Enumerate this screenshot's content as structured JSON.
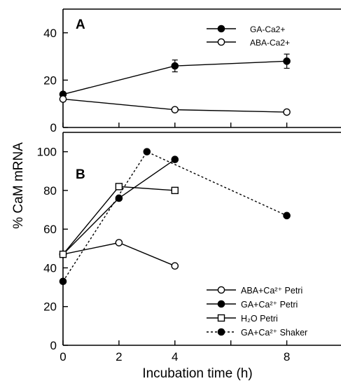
{
  "chart_data": [
    {
      "panel": "A",
      "type": "line",
      "xlabel": "",
      "ylabel": "% CaM mRNA",
      "xlim": [
        0,
        8.5
      ],
      "ylim": [
        0,
        50
      ],
      "x_ticks": [
        0,
        2,
        4,
        6,
        8
      ],
      "y_ticks": [
        0,
        20,
        40
      ],
      "y_tick_labels": [
        "0",
        "20",
        "40"
      ],
      "legend_position": "top-right",
      "series": [
        {
          "name": "GA-Ca2+",
          "marker": "filled-circle",
          "style": "solid",
          "x": [
            0,
            4,
            8
          ],
          "y": [
            14,
            26,
            28
          ],
          "error": [
            0,
            2.5,
            3
          ]
        },
        {
          "name": "ABA-Ca2+",
          "marker": "open-circle",
          "style": "solid",
          "x": [
            0,
            4,
            8
          ],
          "y": [
            12,
            7.5,
            6.5
          ]
        }
      ]
    },
    {
      "panel": "B",
      "type": "line",
      "xlabel": "Incubation time (h)",
      "ylabel": "% CaM mRNA",
      "xlim": [
        0,
        8.5
      ],
      "ylim": [
        0,
        110
      ],
      "x_ticks": [
        0,
        2,
        4,
        6,
        8
      ],
      "x_tick_labels": [
        "0",
        "2",
        "4",
        "",
        "8"
      ],
      "y_ticks": [
        0,
        20,
        40,
        60,
        80,
        100
      ],
      "y_tick_labels": [
        "0",
        "20",
        "40",
        "60",
        "80",
        "100"
      ],
      "legend_position": "bottom-right",
      "series": [
        {
          "name": "ABA+Ca²⁺ Petri",
          "marker": "open-circle",
          "style": "solid",
          "x": [
            0,
            2,
            4
          ],
          "y": [
            47,
            53,
            41
          ]
        },
        {
          "name": "GA+Ca²⁺ Petri",
          "marker": "filled-circle",
          "style": "solid",
          "x": [
            0,
            2,
            4
          ],
          "y": [
            47,
            76,
            96
          ]
        },
        {
          "name": "H₂O Petri",
          "marker": "open-square",
          "style": "solid",
          "x": [
            0,
            2,
            4
          ],
          "y": [
            47,
            82,
            80
          ]
        },
        {
          "name": "GA+Ca²⁺ Shaker",
          "marker": "filled-circle",
          "style": "dotted",
          "x": [
            0,
            3,
            8
          ],
          "y": [
            33,
            100,
            67
          ]
        }
      ]
    }
  ],
  "labels": {
    "panel_a": "A",
    "panel_b": "B",
    "y_axis_title": "% CaM mRNA",
    "x_axis_title": "Incubation time (h)"
  }
}
